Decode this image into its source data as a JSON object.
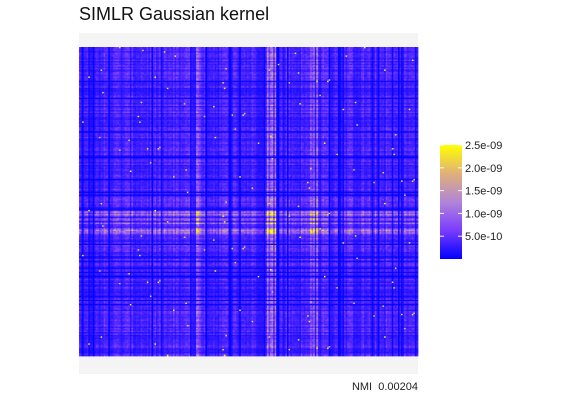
{
  "chart_data": {
    "type": "heatmap",
    "title": "SIMLR Gaussian kernel",
    "xlabel": "",
    "ylabel": "",
    "caption": "NMI  0.00204",
    "matrix_size": 220,
    "colorbar": {
      "ticks": [
        5e-10,
        1e-09,
        1.5e-09,
        2e-09,
        2.5e-09
      ],
      "tick_labels": [
        "5.0e-10",
        "1.0e-09",
        "1.5e-09",
        "2.0e-09",
        "2.5e-09"
      ],
      "range": [
        0,
        2.5e-09
      ],
      "colors": [
        "#0000ff",
        "#7a3cff",
        "#b085d8",
        "#e0b07a",
        "#ffff00"
      ]
    },
    "pattern": {
      "base_value": 3.5e-10,
      "row_factor_mean": 1.0,
      "col_factor_mean": 1.0,
      "bright_row_band": [
        0.53,
        0.6
      ],
      "bright_col_bands": [
        [
          0.32,
          0.36
        ],
        [
          0.55,
          0.6
        ],
        [
          0.68,
          0.72
        ]
      ]
    }
  }
}
